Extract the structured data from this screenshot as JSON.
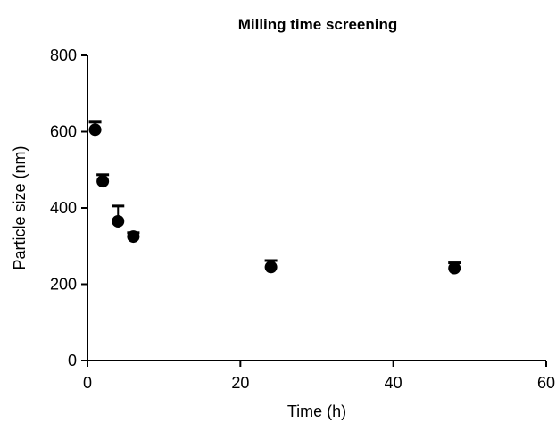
{
  "chart_data": {
    "type": "scatter",
    "title": "Milling time screening",
    "xlabel": "Time (h)",
    "ylabel": "Particle size (nm)",
    "xlim": [
      0,
      60
    ],
    "ylim": [
      0,
      800
    ],
    "xticks": [
      0,
      20,
      40,
      60
    ],
    "yticks": [
      0,
      200,
      400,
      600,
      800
    ],
    "grid": false,
    "error_bars": "upper",
    "series": [
      {
        "points": [
          {
            "x": 1,
            "y": 605,
            "err": 20
          },
          {
            "x": 2,
            "y": 470,
            "err": 17
          },
          {
            "x": 4,
            "y": 365,
            "err": 40
          },
          {
            "x": 6,
            "y": 325,
            "err": 10
          },
          {
            "x": 24,
            "y": 245,
            "err": 17
          },
          {
            "x": 48,
            "y": 242,
            "err": 14
          }
        ]
      }
    ]
  },
  "colors": {
    "marker": "#000000",
    "axis": "#000000"
  }
}
